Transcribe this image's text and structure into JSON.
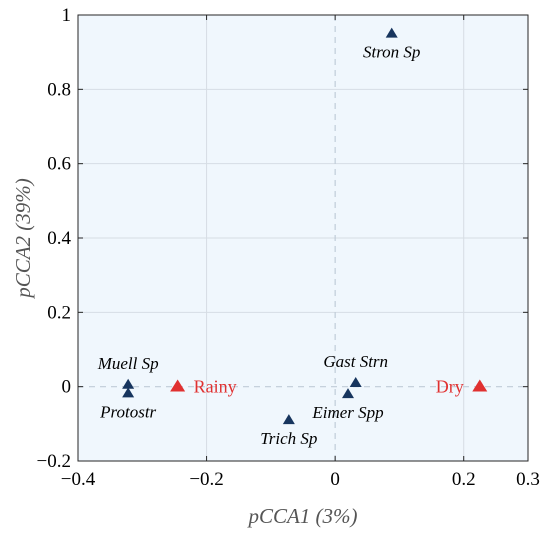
{
  "chart_data": {
    "type": "scatter",
    "xlabel": "pCCA1 (3%)",
    "ylabel": "pCCA2 (39%)",
    "xlim": [
      -0.4,
      0.3
    ],
    "ylim": [
      -0.2,
      1.0
    ],
    "x_ticks": [
      {
        "value": -0.4,
        "label": "−0.4"
      },
      {
        "value": -0.2,
        "label": "−0.2"
      },
      {
        "value": 0.0,
        "label": "0"
      },
      {
        "value": 0.2,
        "label": "0.2"
      },
      {
        "value": 0.3,
        "label": "0.3"
      }
    ],
    "y_ticks": [
      {
        "value": -0.2,
        "label": "−0.2"
      },
      {
        "value": 0.0,
        "label": "0"
      },
      {
        "value": 0.2,
        "label": "0.2"
      },
      {
        "value": 0.4,
        "label": "0.4"
      },
      {
        "value": 0.6,
        "label": "0.6"
      },
      {
        "value": 0.8,
        "label": "0.8"
      },
      {
        "value": 1.0,
        "label": "1"
      }
    ],
    "grid": true,
    "zero_lines": true,
    "series": [
      {
        "color": "#17355e",
        "points": [
          {
            "label": "Stron Sp",
            "x": 0.088,
            "y": 0.95,
            "label_pos": "below"
          },
          {
            "label": "Muell Sp",
            "x": -0.322,
            "y": 0.005,
            "label_pos": "above"
          },
          {
            "label": "Protostr",
            "x": -0.322,
            "y": -0.018,
            "label_pos": "below"
          },
          {
            "label": "Gast Strn",
            "x": 0.032,
            "y": 0.01,
            "label_pos": "above"
          },
          {
            "label": "Eimer Spp",
            "x": 0.02,
            "y": -0.02,
            "label_pos": "below"
          },
          {
            "label": "Trich Sp",
            "x": -0.072,
            "y": -0.09,
            "label_pos": "below"
          }
        ]
      },
      {
        "color": "#e03030",
        "points": [
          {
            "label": "Rainy",
            "x": -0.245,
            "y": 0.0,
            "label_pos": "right"
          },
          {
            "label": "Dry",
            "x": 0.225,
            "y": 0.0,
            "label_pos": "left"
          }
        ]
      }
    ],
    "colors": {
      "plot_background": "#f0f7fd",
      "grid": "#d6dde4",
      "zero_line": "#c0ccd8"
    }
  }
}
